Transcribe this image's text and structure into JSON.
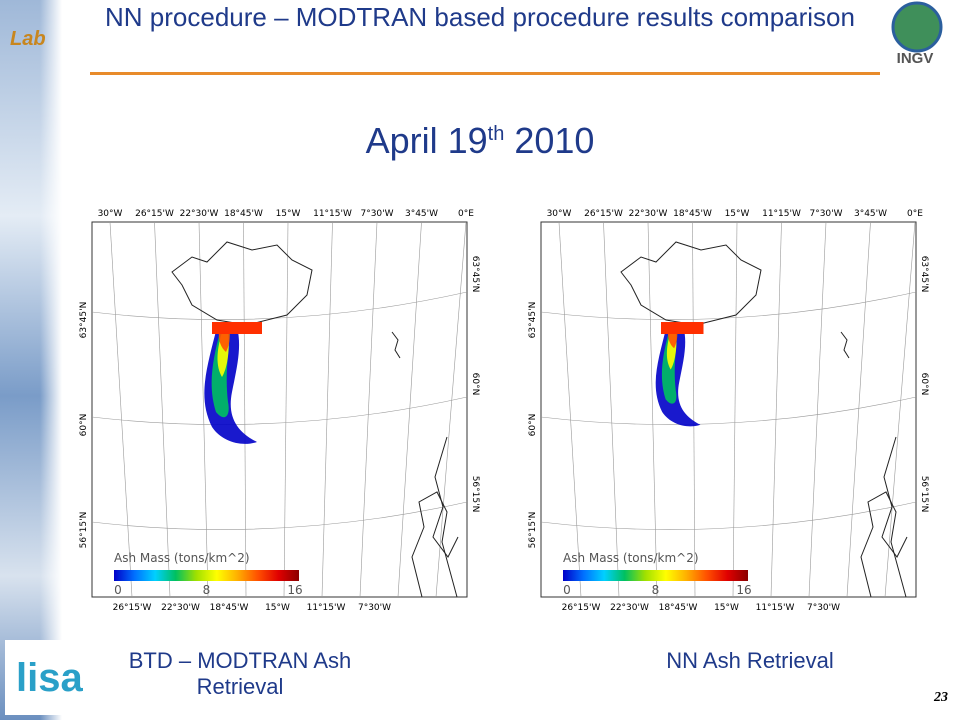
{
  "header": {
    "title": "NN procedure – MODTRAN based procedure results comparison",
    "logo_right": "INGV",
    "logo_left": "Lab"
  },
  "heading": {
    "main": "April 19",
    "sup": "th",
    "year": "2010"
  },
  "maps": [
    {
      "top_lon": [
        "30°W",
        "26°15'W",
        "22°30'W",
        "18°45'W",
        "15°W",
        "11°15'W",
        "7°30'W",
        "3°45'W",
        "0°E"
      ],
      "bottom_lon": [
        "26°15'W",
        "22°30'W",
        "18°45'W",
        "15°W",
        "11°15'W",
        "7°30'W"
      ],
      "left_lat": [
        "63°45'N",
        "60°N",
        "56°15'N"
      ],
      "right_lat": [
        "63°45'N",
        "60°N",
        "56°15'N"
      ],
      "colorbar": {
        "label": "Ash Mass (tons/km^2)",
        "ticks": [
          0,
          8,
          16
        ]
      },
      "caption": "BTD – MODTRAN Ash Retrieval"
    },
    {
      "top_lon": [
        "30°W",
        "26°15'W",
        "22°30'W",
        "18°45'W",
        "15°W",
        "11°15'W",
        "7°30'W",
        "3°45'W",
        "0°E"
      ],
      "bottom_lon": [
        "26°15'W",
        "22°30'W",
        "18°45'W",
        "15°W",
        "11°15'W",
        "7°30'W"
      ],
      "left_lat": [
        "63°45'N",
        "60°N",
        "56°15'N"
      ],
      "right_lat": [
        "63°45'N",
        "60°N",
        "56°15'N"
      ],
      "colorbar": {
        "label": "Ash Mass (tons/km^2)",
        "ticks": [
          0,
          8,
          16
        ]
      },
      "caption": "NN Ash Retrieval"
    }
  ],
  "footer": {
    "logo": "lisa",
    "page": "23"
  }
}
